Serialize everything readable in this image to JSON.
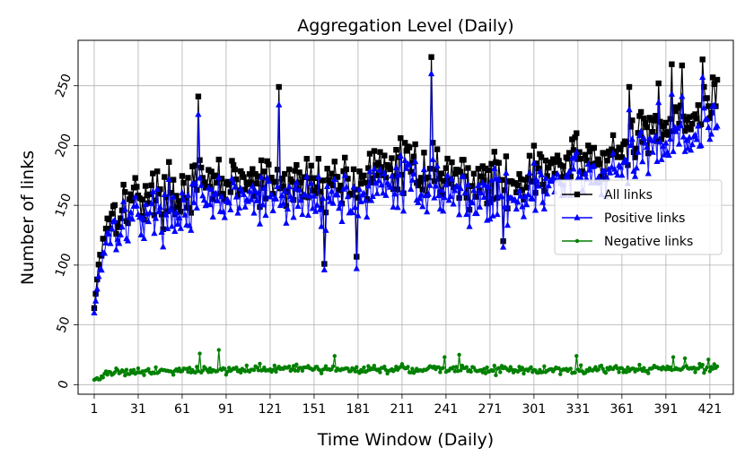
{
  "chart_data": {
    "type": "line",
    "title": "Aggregation Level (Daily)",
    "xlabel": "Time Window (Daily)",
    "ylabel": "Number of links",
    "xlim": [
      -10,
      437
    ],
    "ylim": [
      -8,
      288
    ],
    "xticks": [
      1,
      31,
      61,
      91,
      121,
      151,
      181,
      211,
      241,
      271,
      301,
      331,
      361,
      391,
      421
    ],
    "yticks": [
      0,
      50,
      100,
      150,
      200,
      250
    ],
    "grid": true,
    "legend_position": "right",
    "num_points": 426,
    "series": [
      {
        "name": "All links",
        "color": "#000000",
        "marker": "square",
        "trend": [
          [
            1,
            64
          ],
          [
            5,
            112
          ],
          [
            10,
            140
          ],
          [
            20,
            150
          ],
          [
            30,
            158
          ],
          [
            60,
            160
          ],
          [
            70,
            165
          ],
          [
            90,
            170
          ],
          [
            120,
            168
          ],
          [
            150,
            170
          ],
          [
            180,
            172
          ],
          [
            200,
            178
          ],
          [
            210,
            185
          ],
          [
            230,
            180
          ],
          [
            260,
            170
          ],
          [
            290,
            172
          ],
          [
            310,
            180
          ],
          [
            330,
            188
          ],
          [
            350,
            190
          ],
          [
            360,
            192
          ],
          [
            380,
            215
          ],
          [
            400,
            225
          ],
          [
            426,
            230
          ]
        ],
        "spikes": [
          [
            72,
            241
          ],
          [
            127,
            249
          ],
          [
            231,
            274
          ],
          [
            158,
            101
          ],
          [
            180,
            107
          ],
          [
            280,
            120
          ],
          [
            366,
            249
          ],
          [
            386,
            252
          ],
          [
            395,
            268
          ],
          [
            402,
            267
          ],
          [
            416,
            272
          ],
          [
            423,
            257
          ],
          [
            426,
            255
          ]
        ]
      },
      {
        "name": "Positive links",
        "color": "#0000ff",
        "marker": "triangle",
        "trend": [
          [
            1,
            60
          ],
          [
            5,
            100
          ],
          [
            10,
            128
          ],
          [
            20,
            136
          ],
          [
            30,
            142
          ],
          [
            60,
            146
          ],
          [
            70,
            150
          ],
          [
            90,
            155
          ],
          [
            120,
            154
          ],
          [
            150,
            155
          ],
          [
            180,
            157
          ],
          [
            200,
            163
          ],
          [
            210,
            170
          ],
          [
            230,
            166
          ],
          [
            260,
            156
          ],
          [
            290,
            158
          ],
          [
            310,
            165
          ],
          [
            330,
            172
          ],
          [
            350,
            175
          ],
          [
            360,
            177
          ],
          [
            380,
            198
          ],
          [
            400,
            208
          ],
          [
            426,
            212
          ]
        ],
        "spikes": [
          [
            72,
            226
          ],
          [
            127,
            234
          ],
          [
            231,
            260
          ],
          [
            158,
            96
          ],
          [
            180,
            97
          ],
          [
            280,
            115
          ],
          [
            366,
            230
          ],
          [
            386,
            236
          ],
          [
            395,
            243
          ],
          [
            402,
            241
          ],
          [
            416,
            257
          ],
          [
            423,
            233
          ]
        ]
      },
      {
        "name": "Negative links",
        "color": "#008000",
        "marker": "dot",
        "trend": [
          [
            1,
            4
          ],
          [
            5,
            7
          ],
          [
            15,
            11
          ],
          [
            60,
            12
          ],
          [
            120,
            13
          ],
          [
            180,
            13
          ],
          [
            240,
            13
          ],
          [
            300,
            12
          ],
          [
            360,
            13
          ],
          [
            426,
            14
          ]
        ],
        "spikes": [
          [
            86,
            29
          ],
          [
            73,
            26
          ],
          [
            165,
            24
          ],
          [
            240,
            23
          ],
          [
            250,
            25
          ],
          [
            330,
            24
          ],
          [
            396,
            23
          ],
          [
            404,
            22
          ],
          [
            420,
            21
          ]
        ]
      }
    ]
  }
}
